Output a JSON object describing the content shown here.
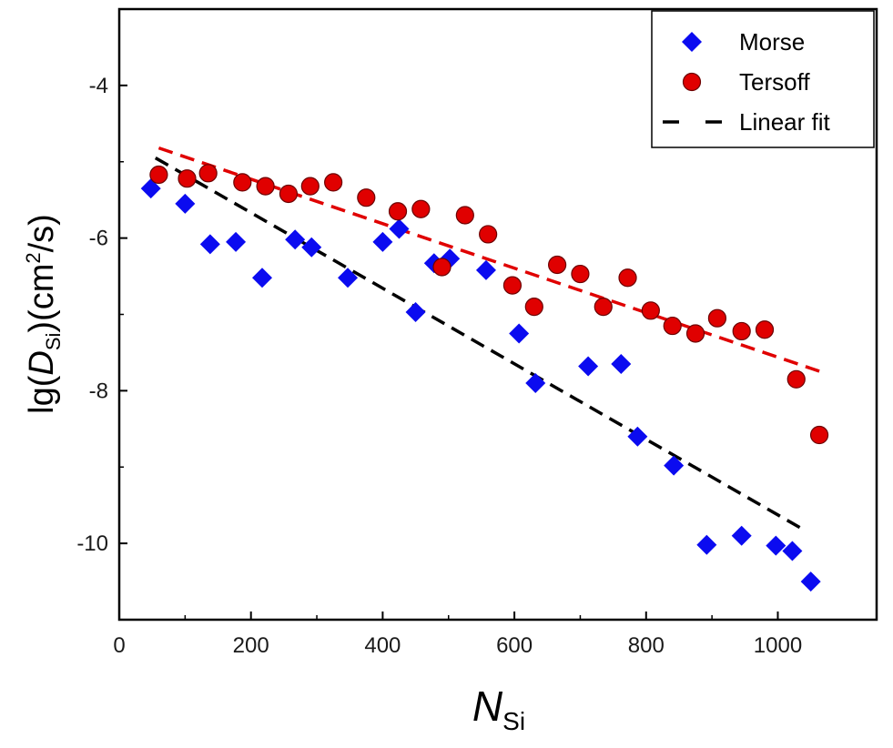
{
  "chart_data": {
    "type": "scatter",
    "title": "",
    "xlabel": {
      "main": "N",
      "sub": "Si"
    },
    "ylabel": {
      "pre": "lg(",
      "var": "D",
      "sub": "Si",
      "post": ")(cm",
      "sup": "2",
      "tail": "/s)"
    },
    "xlim": [
      0,
      1150
    ],
    "ylim": [
      -11,
      -3
    ],
    "xticks": [
      0,
      200,
      400,
      600,
      800,
      1000
    ],
    "yticks": [
      -10,
      -8,
      -6,
      -4
    ],
    "grid": false,
    "legend_position": "top-right",
    "series": [
      {
        "name": "Morse",
        "marker": "diamond",
        "color": "#0b0bf0",
        "points": [
          [
            48,
            -5.35
          ],
          [
            100,
            -5.55
          ],
          [
            138,
            -6.08
          ],
          [
            177,
            -6.05
          ],
          [
            217,
            -6.52
          ],
          [
            267,
            -6.02
          ],
          [
            292,
            -6.12
          ],
          [
            347,
            -6.52
          ],
          [
            400,
            -6.05
          ],
          [
            425,
            -5.88
          ],
          [
            450,
            -6.97
          ],
          [
            478,
            -6.33
          ],
          [
            502,
            -6.27
          ],
          [
            557,
            -6.42
          ],
          [
            607,
            -7.25
          ],
          [
            632,
            -7.9
          ],
          [
            712,
            -7.68
          ],
          [
            762,
            -7.65
          ],
          [
            787,
            -8.6
          ],
          [
            842,
            -8.98
          ],
          [
            892,
            -10.02
          ],
          [
            945,
            -9.9
          ],
          [
            997,
            -10.03
          ],
          [
            1022,
            -10.1
          ],
          [
            1050,
            -10.5
          ]
        ]
      },
      {
        "name": "Tersoff",
        "marker": "circle",
        "color": "#e00000",
        "points": [
          [
            60,
            -5.17
          ],
          [
            103,
            -5.22
          ],
          [
            135,
            -5.15
          ],
          [
            187,
            -5.27
          ],
          [
            222,
            -5.32
          ],
          [
            257,
            -5.42
          ],
          [
            290,
            -5.32
          ],
          [
            325,
            -5.27
          ],
          [
            375,
            -5.47
          ],
          [
            423,
            -5.65
          ],
          [
            458,
            -5.62
          ],
          [
            490,
            -6.38
          ],
          [
            525,
            -5.7
          ],
          [
            560,
            -5.95
          ],
          [
            597,
            -6.62
          ],
          [
            630,
            -6.9
          ],
          [
            665,
            -6.35
          ],
          [
            700,
            -6.47
          ],
          [
            735,
            -6.9
          ],
          [
            772,
            -6.52
          ],
          [
            807,
            -6.95
          ],
          [
            840,
            -7.15
          ],
          [
            875,
            -7.25
          ],
          [
            908,
            -7.05
          ],
          [
            945,
            -7.22
          ],
          [
            980,
            -7.2
          ],
          [
            1028,
            -7.85
          ],
          [
            1063,
            -8.58
          ]
        ]
      }
    ],
    "fits": [
      {
        "name": "Linear fit",
        "color": "#000000",
        "x": [
          55,
          1035
        ],
        "y": [
          -4.95,
          -9.8
        ]
      },
      {
        "name": "Tersoff fit",
        "color": "#e00000",
        "x": [
          60,
          1065
        ],
        "y": [
          -4.82,
          -7.75
        ]
      }
    ],
    "legend": [
      {
        "label": "Morse",
        "marker": "diamond",
        "color": "#0b0bf0"
      },
      {
        "label": "Tersoff",
        "marker": "circle",
        "color": "#e00000"
      },
      {
        "label": "Linear fit",
        "marker": "dash",
        "color": "#000000"
      }
    ]
  }
}
